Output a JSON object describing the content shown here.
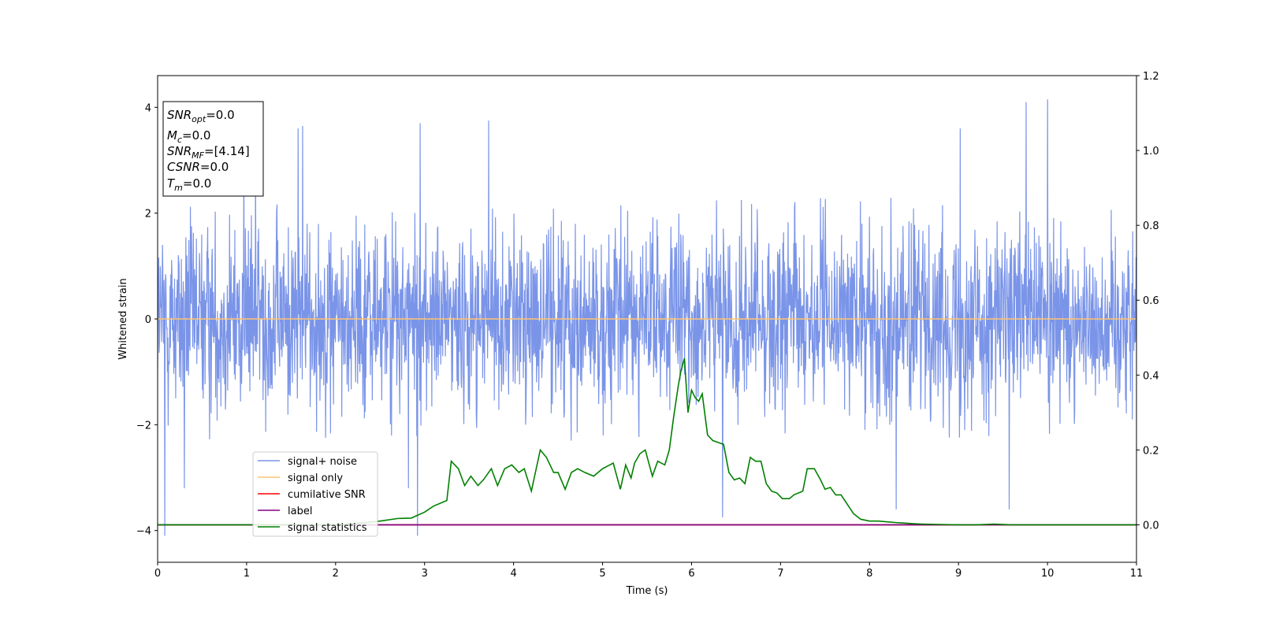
{
  "chart_data": {
    "type": "line",
    "xlabel": "Time (s)",
    "ylabel": "Whitened strain",
    "xlim": [
      0,
      11
    ],
    "ylim_left": [
      -4.6,
      4.6
    ],
    "ylim_right": [
      -0.1,
      1.2
    ],
    "x_ticks": [
      "0",
      "1",
      "2",
      "3",
      "4",
      "5",
      "6",
      "7",
      "8",
      "9",
      "10",
      "11"
    ],
    "y_ticks_left": [
      "−4",
      "−2",
      "0",
      "2",
      "4"
    ],
    "y_ticks_right": [
      "0.0",
      "0.2",
      "0.4",
      "0.6",
      "0.8",
      "1.0",
      "1.2"
    ],
    "grid": false,
    "legend": {
      "placement": "lower-left",
      "entries": [
        {
          "label": "signal+ noise",
          "color": "#7a94e8"
        },
        {
          "label": "signal only",
          "color": "#ffc46e"
        },
        {
          "label": "cumilative SNR",
          "color": "#ff0000"
        },
        {
          "label": "label",
          "color": "#800080"
        },
        {
          "label": "signal statistics",
          "color": "#008000"
        }
      ]
    },
    "info_box": {
      "placement": "top-left",
      "lines": [
        {
          "name": "SNR",
          "sub": "opt",
          "value": "=0.0"
        },
        {
          "name": "M",
          "sub": "c",
          "value": "=0.0"
        },
        {
          "name": "SNR",
          "sub": "MF",
          "value": "=[4.14]"
        },
        {
          "name": "CSNR",
          "sub": "",
          "value": "=0.0"
        },
        {
          "name": "T",
          "sub": "m",
          "value": "=0.0"
        }
      ]
    },
    "series": [
      {
        "name": "signal+ noise",
        "axis": "left",
        "color": "#7a94e8",
        "description_kind": "gaussian_noise",
        "typical_range": [
          -2.3,
          2.3
        ],
        "peaks": [
          {
            "x": 0.08,
            "y": -4.1
          },
          {
            "x": 0.3,
            "y": -3.2
          },
          {
            "x": 0.97,
            "y": 3.1
          },
          {
            "x": 1.1,
            "y": 3.1
          },
          {
            "x": 1.58,
            "y": 3.6
          },
          {
            "x": 1.63,
            "y": 3.65
          },
          {
            "x": 2.82,
            "y": -3.2
          },
          {
            "x": 2.92,
            "y": -4.1
          },
          {
            "x": 2.95,
            "y": 3.7
          },
          {
            "x": 3.72,
            "y": 3.75
          },
          {
            "x": 6.35,
            "y": -3.75
          },
          {
            "x": 8.3,
            "y": -3.6
          },
          {
            "x": 9.02,
            "y": 3.6
          },
          {
            "x": 9.57,
            "y": -3.6
          },
          {
            "x": 9.76,
            "y": 4.1
          },
          {
            "x": 10.0,
            "y": 4.15
          }
        ]
      },
      {
        "name": "signal only",
        "axis": "left",
        "color": "#ffc46e",
        "x": [
          0,
          11
        ],
        "y": [
          0,
          0
        ]
      },
      {
        "name": "cumilative SNR",
        "axis": "right",
        "color": "#ff0000",
        "x": [
          0,
          11
        ],
        "y": [
          0,
          0
        ]
      },
      {
        "name": "label",
        "axis": "right",
        "color": "#800080",
        "x": [
          0,
          11
        ],
        "y": [
          0,
          0
        ]
      },
      {
        "name": "signal statistics",
        "axis": "right",
        "color": "#008000",
        "x": [
          0,
          0.5,
          1.0,
          1.5,
          2.0,
          2.3,
          2.5,
          2.7,
          2.85,
          3.0,
          3.1,
          3.25,
          3.3,
          3.38,
          3.45,
          3.52,
          3.6,
          3.66,
          3.75,
          3.82,
          3.9,
          3.98,
          4.06,
          4.12,
          4.2,
          4.3,
          4.37,
          4.45,
          4.5,
          4.58,
          4.65,
          4.72,
          4.8,
          4.9,
          5.0,
          5.08,
          5.12,
          5.2,
          5.26,
          5.32,
          5.36,
          5.42,
          5.48,
          5.56,
          5.62,
          5.7,
          5.75,
          5.8,
          5.85,
          5.88,
          5.92,
          5.96,
          6.0,
          6.04,
          6.08,
          6.12,
          6.18,
          6.24,
          6.3,
          6.36,
          6.42,
          6.48,
          6.54,
          6.6,
          6.66,
          6.72,
          6.78,
          6.84,
          6.9,
          6.96,
          7.02,
          7.1,
          7.15,
          7.25,
          7.3,
          7.38,
          7.45,
          7.5,
          7.56,
          7.62,
          7.68,
          7.75,
          7.82,
          7.9,
          8.0,
          8.1,
          8.2,
          8.3,
          8.5,
          8.6,
          8.8,
          9.0,
          9.2,
          9.4,
          9.6,
          9.8,
          10.0,
          10.5,
          11.0
        ],
        "y": [
          0.0,
          0.0,
          0.0,
          0.0,
          0.0,
          0.005,
          0.01,
          0.017,
          0.018,
          0.034,
          0.05,
          0.065,
          0.17,
          0.15,
          0.105,
          0.13,
          0.105,
          0.12,
          0.15,
          0.105,
          0.15,
          0.16,
          0.14,
          0.15,
          0.09,
          0.2,
          0.18,
          0.14,
          0.14,
          0.095,
          0.14,
          0.15,
          0.14,
          0.13,
          0.15,
          0.16,
          0.165,
          0.095,
          0.16,
          0.125,
          0.165,
          0.19,
          0.2,
          0.13,
          0.17,
          0.16,
          0.2,
          0.29,
          0.37,
          0.41,
          0.445,
          0.3,
          0.36,
          0.34,
          0.33,
          0.35,
          0.24,
          0.225,
          0.22,
          0.215,
          0.14,
          0.12,
          0.125,
          0.11,
          0.18,
          0.17,
          0.17,
          0.11,
          0.09,
          0.085,
          0.07,
          0.07,
          0.08,
          0.09,
          0.15,
          0.15,
          0.12,
          0.095,
          0.1,
          0.08,
          0.08,
          0.055,
          0.03,
          0.015,
          0.01,
          0.01,
          0.008,
          0.006,
          0.003,
          0.002,
          0.001,
          0.0,
          0.0,
          0.002,
          0.0,
          0.0,
          0.0,
          0.0,
          0.0
        ]
      }
    ]
  }
}
